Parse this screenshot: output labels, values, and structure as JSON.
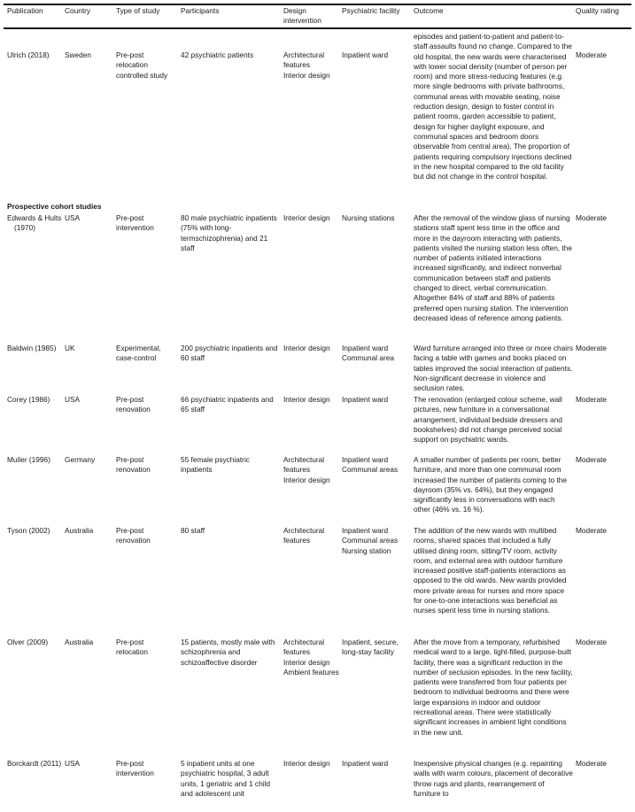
{
  "table": {
    "headers": [
      "Publication",
      "Country",
      "Type of study",
      "Participants",
      "Design intervention",
      "Psychiatric facility",
      "Outcome",
      "Quality rating"
    ],
    "section_heading": "Prospective cohort studies",
    "rows": [
      {
        "publication": "Ulrich (2018)",
        "country": "Sweden",
        "type": "Pre-post relocation controlled study",
        "participants": "42 psychiatric patients",
        "design": [
          "Architectural features",
          "Interior design"
        ],
        "facility": [
          "Inpatient ward"
        ],
        "outcome": "episodes and patient-to-patient and patient-to-staff assaults found no change. Compared to the old hospital, the new wards were characterised with lower social density (number of person per room) and more stress-reducing features (e.g. more single bedrooms with private bathrooms, communal areas with movable seating, noise reduction design, design to foster control in patient rooms, garden accessible to patient, design for higher daylight exposure, and communal spaces and bedroom doors observable from central area). The proportion of patients requiring compulsory injections declined in the new hospital compared to the old facility but did not change in the control hospital.",
        "quality": "Moderate"
      },
      {
        "publication": "Edwards & Hults (1970)",
        "country": "USA",
        "type": "Pre-post intervention",
        "participants": "80 male psychiatric inpatients (75% with long-termschizophrenia) and 21 staff",
        "design": [
          "Interior design"
        ],
        "facility": [
          "Nursing stations"
        ],
        "outcome": "After the removal of the window glass of nursing stations staff spent less time in the office and more in the dayroom interacting with patients, patients visited the nursing station less often, the number of patients initiated interactions increased significantly, and indirect nonverbal communication between staff and patients changed to direct, verbal communication. Altogether 84% of staff and 88% of patients preferred open nursing station. The intervention decreased ideas of reference among patients.",
        "quality": "Moderate"
      },
      {
        "publication": "Baldwin (1985)",
        "country": "UK",
        "type": "Experimental, case-control",
        "participants": "200 psychiatric inpatients and 60 staff",
        "design": [
          "Interior design"
        ],
        "facility": [
          "Inpatient ward",
          "Communal area"
        ],
        "outcome": "Ward furniture arranged into three or more chairs facing a table with games and books placed on tables improved the social interaction of patients. Non-significant decrease in violence and seclusion rates.",
        "quality": "Moderate"
      },
      {
        "publication": "Corey (1986)",
        "country": "USA",
        "type": "Pre-post renovation",
        "participants": "66 psychiatric inpatients and 65 staff",
        "design": [
          "Interior design"
        ],
        "facility": [
          "Inpatient ward"
        ],
        "outcome": "The renovation (enlarged colour scheme, wall pictures, new furniture in a conversational arrangement, individual bedside dressers and bookshelves) did not change perceived social support on psychiatric wards.",
        "quality": "Moderate"
      },
      {
        "publication": "Muller (1996)",
        "country": "Germany",
        "type": "Pre-post renovation",
        "participants": "55 female psychiatric inpatients",
        "design": [
          "Architectural features",
          "Interior design"
        ],
        "facility": [
          "Inpatient ward",
          "Communal areas"
        ],
        "outcome": "A smaller number of patients per room, better furniture, and more than one communal room increased the number of patients coming to the dayroom (35% vs. 64%), but they engaged significantly less in conversations with each other (46% vs. 16 %).",
        "quality": "Moderate"
      },
      {
        "publication": "Tyson (2002)",
        "country": "Australia",
        "type": "Pre-post renovation",
        "participants": "80 staff",
        "design": [
          "Architectural features"
        ],
        "facility": [
          "Inpatient ward",
          "Communal areas",
          "Nursing station"
        ],
        "outcome": "The addition of the new wards with multibed rooms, shared spaces that included a fully utilised dining room, sitting/TV room, activity room, and external area with outdoor furniture increased positive staff-patients interactions as opposed to the old wards. New wards provided more private areas for nurses and more space for one-to-one interactions was beneficial as nurses spent less time in nursing stations.",
        "quality": "Moderate"
      },
      {
        "publication": "Olver (2009)",
        "country": "Australia",
        "type": "Pre-post relocation",
        "participants": "15 patients, mostly male with schizophrenia and schizoaffective disorder",
        "design": [
          "Architectural features",
          "Interior design",
          "Ambient features"
        ],
        "facility": [
          "Inpatient, secure, long-stay facility"
        ],
        "outcome": "After the move from a temporary, refurbished medical ward to a large, light-filled, purpose-built facility, there was a significant reduction in the number of seclusion episodes. In the new facility, patients were transferred from four patients per bedroom to individual bedrooms and there were large expansions in indoor and outdoor recreational areas. There were statistically significant increases in ambient light conditions in the new unit.",
        "quality": "Moderate"
      },
      {
        "publication": "Borckardt (2011)",
        "country": "USA",
        "type": "Pre-post intervention",
        "participants": "5 inpatient units at one psychiatric hospital, 3 adult units, 1 geriatric and 1 child and adolescent unit",
        "design": [
          "Interior design"
        ],
        "facility": [
          "Inpatient ward"
        ],
        "outcome": "Inexpensive physical changes (e.g. repainting walls with warm colours, placement of decorative throw rugs and plants, rearrangement of furniture to",
        "quality": "Moderate"
      }
    ]
  }
}
